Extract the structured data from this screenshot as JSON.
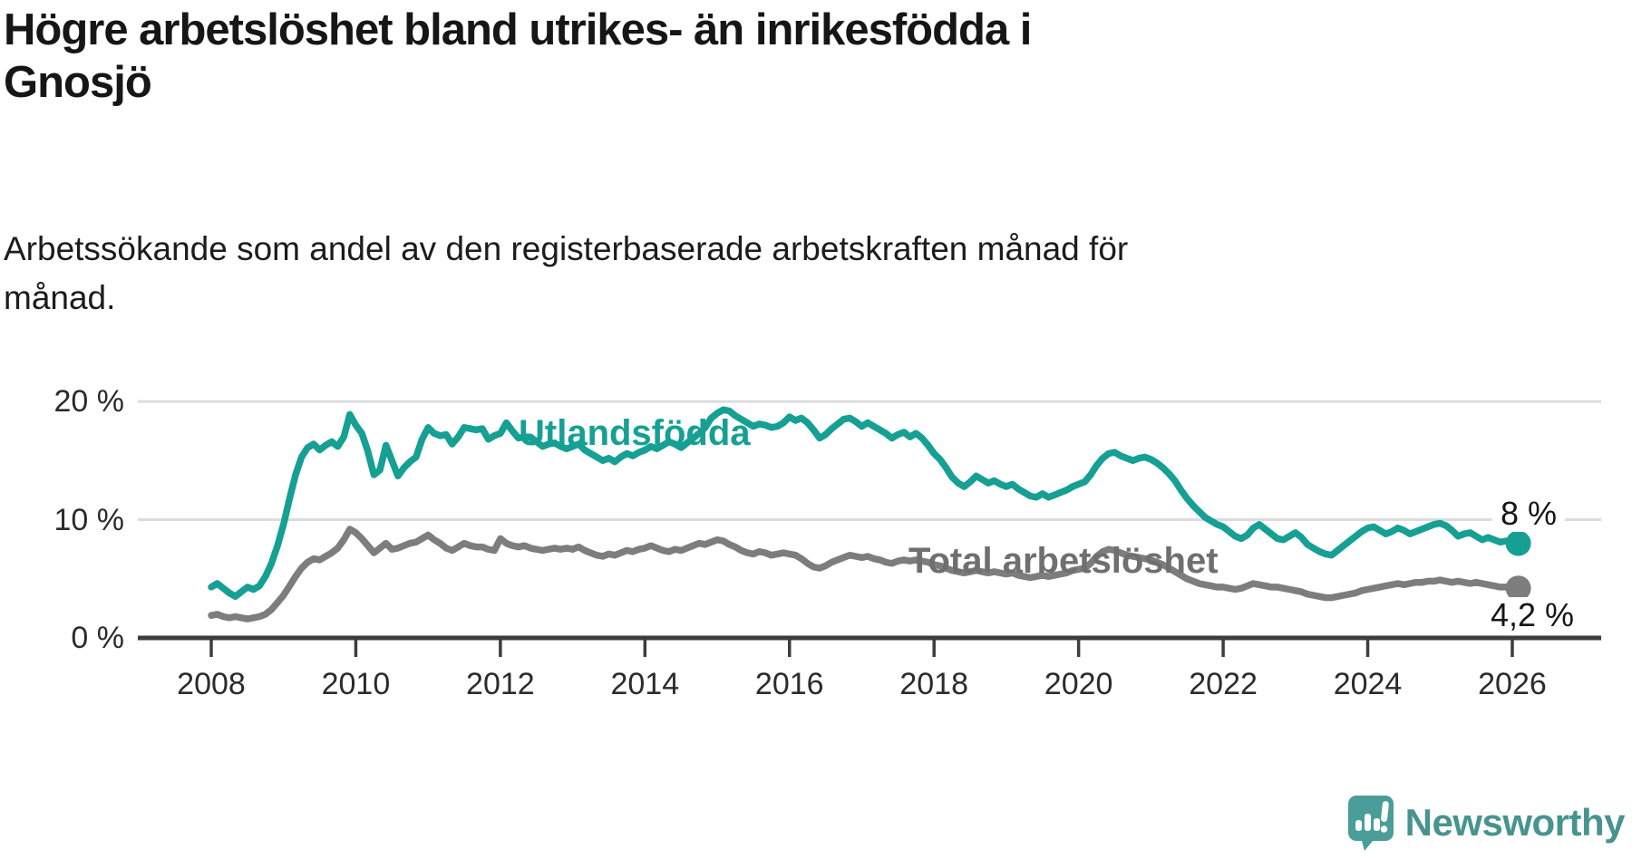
{
  "title": {
    "lines": [
      "Högre arbetslöshet bland utrikes- än inrikesfödda i",
      "Gnosjö"
    ]
  },
  "subtitle": {
    "lines": [
      "Arbetssökande som andel av den registerbaserade arbetskraften månad för",
      "månad."
    ]
  },
  "colors": {
    "accent_teal": "#16a094",
    "series_gray": "#7d7d7d",
    "axis": "#3d3d3d",
    "gridline": "#dcdcdc",
    "text": "#161616",
    "brand_teal": "#47948f"
  },
  "chart_data": {
    "type": "line",
    "title": "Högre arbetslöshet bland utrikes- än inrikesfödda i Gnosjö",
    "subtitle": "Arbetssökande som andel av den registerbaserade arbetskraften månad för månad.",
    "unit": "%",
    "frequency": "monthly",
    "grid": "horizontal-only",
    "x_ticks": [
      2008,
      2010,
      2012,
      2014,
      2016,
      2018,
      2020,
      2022,
      2024,
      2026
    ],
    "y_ticks": [
      {
        "value": 0,
        "label": "0 %"
      },
      {
        "value": 10,
        "label": "10 %"
      },
      {
        "value": 20,
        "label": "20 %"
      }
    ],
    "x_range_years": [
      2007.0,
      2027.2
    ],
    "y_range": [
      0,
      21.8
    ],
    "legend_position": "inline-labels",
    "series": [
      {
        "name": "Utlandsfödda",
        "color": "#16a094",
        "start_year": 2008,
        "end_label": "8 %",
        "last_value": 8.0,
        "values": [
          4.3,
          4.6,
          4.2,
          3.8,
          3.5,
          3.9,
          4.3,
          4.1,
          4.4,
          5.2,
          6.3,
          7.8,
          9.6,
          11.8,
          13.8,
          15.3,
          16.1,
          16.4,
          15.9,
          16.3,
          16.6,
          16.2,
          17.0,
          18.9,
          18.0,
          17.3,
          15.8,
          13.8,
          14.2,
          16.3,
          15.0,
          13.7,
          14.4,
          14.9,
          15.3,
          16.8,
          17.8,
          17.3,
          17.1,
          17.2,
          16.4,
          17.0,
          17.8,
          17.7,
          17.6,
          17.7,
          16.8,
          17.1,
          17.3,
          18.2,
          17.5,
          16.9,
          17.0,
          17.0,
          16.6,
          16.2,
          16.4,
          16.5,
          16.2,
          16.0,
          16.2,
          16.4,
          15.9,
          15.6,
          15.3,
          15.0,
          15.2,
          14.9,
          15.3,
          15.6,
          15.4,
          15.7,
          15.9,
          16.2,
          16.0,
          16.3,
          16.6,
          16.4,
          16.1,
          16.5,
          16.9,
          17.3,
          17.8,
          18.6,
          19.0,
          19.3,
          19.2,
          18.8,
          18.5,
          18.2,
          17.9,
          18.1,
          18.0,
          17.8,
          17.9,
          18.2,
          18.7,
          18.4,
          18.6,
          18.2,
          17.6,
          16.9,
          17.2,
          17.7,
          18.1,
          18.5,
          18.6,
          18.3,
          17.9,
          18.2,
          17.9,
          17.6,
          17.3,
          16.9,
          17.2,
          17.4,
          17.0,
          17.3,
          16.9,
          16.3,
          15.6,
          15.1,
          14.4,
          13.6,
          13.1,
          12.8,
          13.2,
          13.7,
          13.4,
          13.1,
          13.3,
          13.0,
          12.8,
          13.0,
          12.6,
          12.3,
          12.0,
          11.9,
          12.2,
          11.9,
          12.1,
          12.3,
          12.5,
          12.8,
          13.0,
          13.2,
          13.8,
          14.6,
          15.2,
          15.6,
          15.7,
          15.4,
          15.2,
          15.0,
          15.2,
          15.3,
          15.1,
          14.8,
          14.4,
          13.9,
          13.3,
          12.5,
          11.8,
          11.2,
          10.7,
          10.2,
          9.9,
          9.6,
          9.4,
          9.0,
          8.6,
          8.4,
          8.7,
          9.3,
          9.6,
          9.2,
          8.8,
          8.4,
          8.3,
          8.6,
          8.9,
          8.5,
          7.9,
          7.6,
          7.3,
          7.1,
          7.0,
          7.4,
          7.8,
          8.2,
          8.6,
          9.0,
          9.3,
          9.4,
          9.1,
          8.8,
          9.0,
          9.3,
          9.1,
          8.8,
          9.0,
          9.2,
          9.4,
          9.6,
          9.7,
          9.5,
          9.1,
          8.6,
          8.8,
          8.9,
          8.6,
          8.3,
          8.5,
          8.3,
          8.1,
          8.2,
          8.1,
          8.0
        ]
      },
      {
        "name": "Total arbetslöshet",
        "color": "#7d7d7d",
        "start_year": 2008,
        "end_label": "4,2 %",
        "last_value": 4.2,
        "values": [
          1.9,
          2.0,
          1.8,
          1.7,
          1.8,
          1.7,
          1.6,
          1.7,
          1.8,
          2.0,
          2.4,
          3.0,
          3.6,
          4.4,
          5.2,
          5.9,
          6.4,
          6.7,
          6.6,
          6.9,
          7.2,
          7.6,
          8.3,
          9.2,
          8.9,
          8.4,
          7.8,
          7.2,
          7.6,
          8.0,
          7.5,
          7.6,
          7.8,
          8.0,
          8.1,
          8.4,
          8.7,
          8.3,
          8.0,
          7.6,
          7.4,
          7.7,
          8.0,
          7.8,
          7.7,
          7.7,
          7.5,
          7.4,
          8.4,
          8.0,
          7.8,
          7.7,
          7.8,
          7.6,
          7.5,
          7.4,
          7.5,
          7.6,
          7.5,
          7.6,
          7.5,
          7.7,
          7.4,
          7.2,
          7.0,
          6.9,
          7.1,
          7.0,
          7.2,
          7.4,
          7.3,
          7.5,
          7.6,
          7.8,
          7.6,
          7.4,
          7.3,
          7.5,
          7.4,
          7.6,
          7.8,
          8.0,
          7.9,
          8.1,
          8.3,
          8.2,
          7.9,
          7.7,
          7.4,
          7.2,
          7.1,
          7.3,
          7.2,
          7.0,
          7.1,
          7.2,
          7.1,
          7.0,
          6.7,
          6.3,
          6.0,
          5.9,
          6.1,
          6.4,
          6.6,
          6.8,
          7.0,
          6.9,
          6.8,
          6.9,
          6.7,
          6.6,
          6.4,
          6.3,
          6.5,
          6.6,
          6.5,
          6.6,
          6.5,
          6.4,
          6.2,
          6.1,
          5.9,
          5.7,
          5.6,
          5.5,
          5.6,
          5.7,
          5.6,
          5.5,
          5.6,
          5.5,
          5.4,
          5.5,
          5.3,
          5.2,
          5.1,
          5.2,
          5.3,
          5.2,
          5.3,
          5.4,
          5.5,
          5.7,
          5.8,
          5.9,
          6.3,
          6.9,
          7.3,
          7.5,
          7.4,
          7.2,
          7.0,
          6.9,
          6.8,
          6.7,
          6.6,
          6.4,
          6.2,
          5.9,
          5.6,
          5.3,
          5.0,
          4.8,
          4.6,
          4.5,
          4.4,
          4.3,
          4.3,
          4.2,
          4.1,
          4.2,
          4.4,
          4.6,
          4.5,
          4.4,
          4.3,
          4.3,
          4.2,
          4.1,
          4.0,
          3.9,
          3.7,
          3.6,
          3.5,
          3.4,
          3.4,
          3.5,
          3.6,
          3.7,
          3.8,
          4.0,
          4.1,
          4.2,
          4.3,
          4.4,
          4.5,
          4.6,
          4.5,
          4.6,
          4.7,
          4.7,
          4.8,
          4.8,
          4.9,
          4.8,
          4.7,
          4.8,
          4.7,
          4.6,
          4.7,
          4.6,
          4.5,
          4.4,
          4.3,
          4.3,
          4.2,
          4.2
        ]
      }
    ]
  },
  "branding": {
    "label": "Newsworthy",
    "color": "#47948f"
  }
}
